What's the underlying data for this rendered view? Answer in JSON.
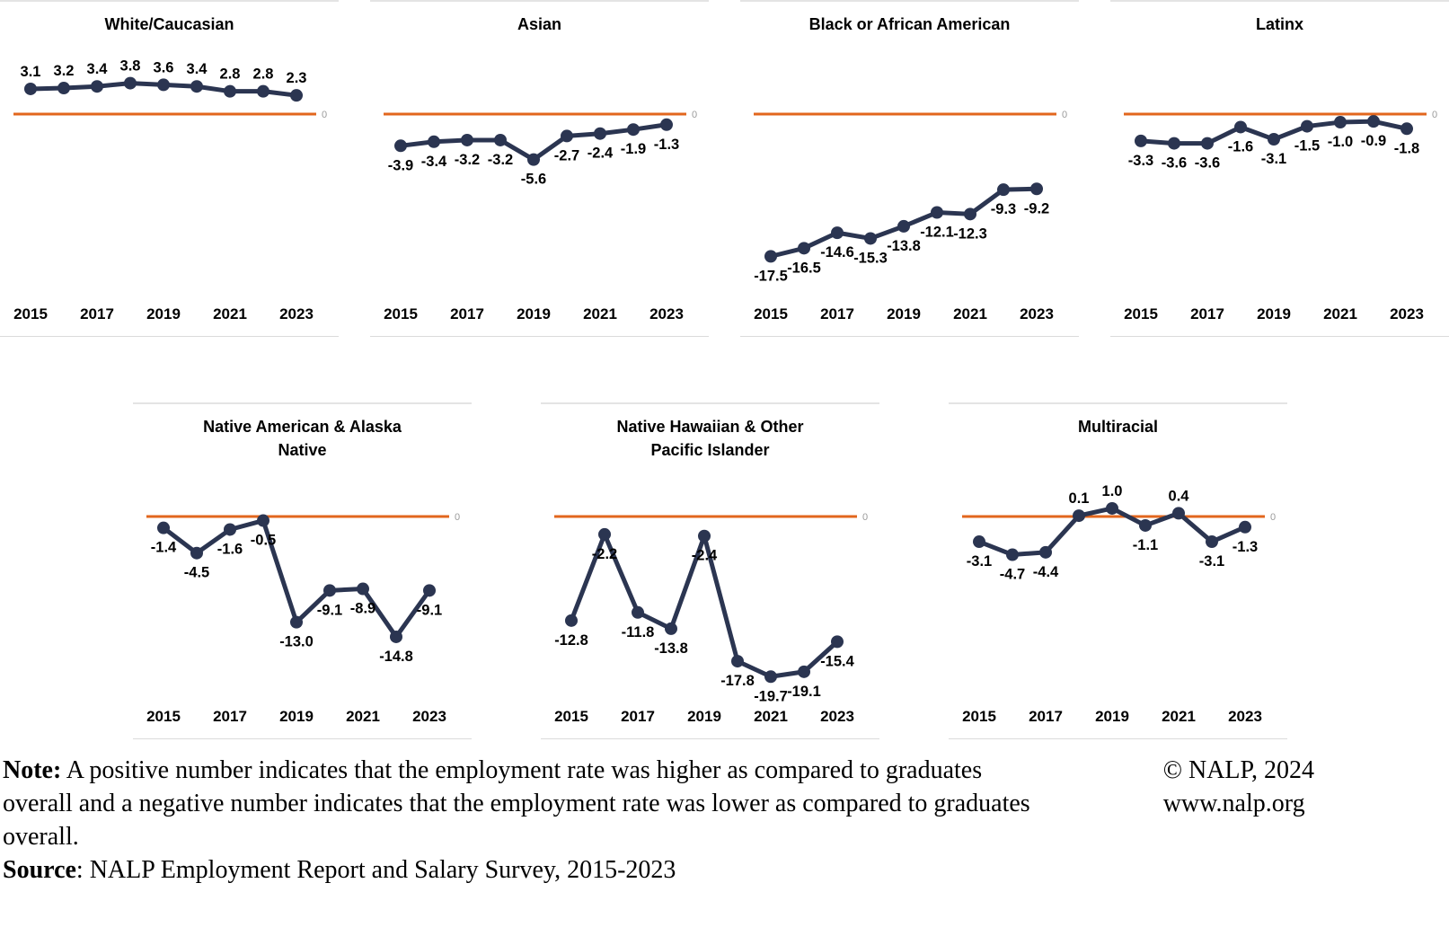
{
  "colors": {
    "series_line": "#2B3551",
    "zero_line": "#E2661D",
    "label_text": "#000000",
    "zero_tick_text": "#9B9B9B",
    "panel_border": "#E4E4E4"
  },
  "chart_data": [
    {
      "type": "line",
      "title": "White/Caucasian",
      "x": [
        2015,
        2016,
        2017,
        2018,
        2019,
        2020,
        2021,
        2022,
        2023
      ],
      "values": [
        3.1,
        3.2,
        3.4,
        3.8,
        3.6,
        3.4,
        2.8,
        2.8,
        2.3
      ],
      "labels": [
        "3.1",
        "3.2",
        "3.4",
        "3.8",
        "3.6",
        "3.4",
        "2.8",
        "2.8",
        "2.3"
      ],
      "xticks": [
        "2015",
        "2017",
        "2019",
        "2021",
        "2023"
      ],
      "ylim": [
        -22,
        6
      ],
      "zero_axis_label": "0",
      "grid": false,
      "legend": false
    },
    {
      "type": "line",
      "title": "Asian",
      "x": [
        2015,
        2016,
        2017,
        2018,
        2019,
        2020,
        2021,
        2022,
        2023
      ],
      "values": [
        -3.9,
        -3.4,
        -3.2,
        -3.2,
        -5.6,
        -2.7,
        -2.4,
        -1.9,
        -1.3
      ],
      "labels": [
        "-3.9",
        "-3.4",
        "-3.2",
        "-3.2",
        "-5.6",
        "-2.7",
        "-2.4",
        "-1.9",
        "-1.3"
      ],
      "xticks": [
        "2015",
        "2017",
        "2019",
        "2021",
        "2023"
      ],
      "ylim": [
        -22,
        6
      ],
      "zero_axis_label": "0",
      "grid": false,
      "legend": false
    },
    {
      "type": "line",
      "title": "Black or African American",
      "x": [
        2015,
        2016,
        2017,
        2018,
        2019,
        2020,
        2021,
        2022,
        2023
      ],
      "values": [
        -17.5,
        -16.5,
        -14.6,
        -15.3,
        -13.8,
        -12.1,
        -12.3,
        -9.3,
        -9.2
      ],
      "labels": [
        "-17.5",
        "-16.5",
        "-14.6",
        "-15.3",
        "-13.8",
        "-12.1",
        "-12.3",
        "-9.3",
        "-9.2"
      ],
      "xticks": [
        "2015",
        "2017",
        "2019",
        "2021",
        "2023"
      ],
      "ylim": [
        -22,
        6
      ],
      "zero_axis_label": "0",
      "grid": false,
      "legend": false
    },
    {
      "type": "line",
      "title": "Latinx",
      "x": [
        2015,
        2016,
        2017,
        2018,
        2019,
        2020,
        2021,
        2022,
        2023
      ],
      "values": [
        -3.3,
        -3.6,
        -3.6,
        -1.6,
        -3.1,
        -1.5,
        -1.0,
        -0.9,
        -1.8
      ],
      "labels": [
        "-3.3",
        "-3.6",
        "-3.6",
        "-1.6",
        "-3.1",
        "-1.5",
        "-1.0",
        "-0.9",
        "-1.8"
      ],
      "xticks": [
        "2015",
        "2017",
        "2019",
        "2021",
        "2023"
      ],
      "ylim": [
        -22,
        6
      ],
      "zero_axis_label": "0",
      "grid": false,
      "legend": false
    },
    {
      "type": "line",
      "title": "Native American & Alaska Native",
      "x": [
        2015,
        2016,
        2017,
        2018,
        2019,
        2020,
        2021,
        2022,
        2023
      ],
      "values": [
        -1.4,
        -4.5,
        -1.6,
        -0.5,
        -13.0,
        -9.1,
        -8.9,
        -14.8,
        -9.1
      ],
      "labels": [
        "-1.4",
        "-4.5",
        "-1.6",
        "-0.5",
        "-13.0",
        "-9.1",
        "-8.9",
        "-14.8",
        "-9.1"
      ],
      "xticks": [
        "2015",
        "2017",
        "2019",
        "2021",
        "2023"
      ],
      "ylim": [
        -22,
        6
      ],
      "zero_axis_label": "0",
      "grid": false,
      "legend": false
    },
    {
      "type": "line",
      "title": "Native Hawaiian & Other Pacific Islander",
      "x": [
        2015,
        2016,
        2017,
        2018,
        2019,
        2020,
        2021,
        2022,
        2023
      ],
      "values": [
        -12.8,
        -2.2,
        -11.8,
        -13.8,
        -2.4,
        -17.8,
        -19.7,
        -19.1,
        -15.4
      ],
      "labels": [
        "-12.8",
        "-2.2",
        "-11.8",
        "-13.8",
        "-2.4",
        "-17.8",
        "-19.7",
        "-19.1",
        "-15.4"
      ],
      "xticks": [
        "2015",
        "2017",
        "2019",
        "2021",
        "2023"
      ],
      "ylim": [
        -22,
        6
      ],
      "zero_axis_label": "0",
      "grid": false,
      "legend": false
    },
    {
      "type": "line",
      "title": "Multiracial",
      "x": [
        2015,
        2016,
        2017,
        2018,
        2019,
        2020,
        2021,
        2022,
        2023
      ],
      "values": [
        -3.1,
        -4.7,
        -4.4,
        0.1,
        1.0,
        -1.1,
        0.4,
        -3.1,
        -1.3
      ],
      "labels": [
        "-3.1",
        "-4.7",
        "-4.4",
        "0.1",
        "1.0",
        "-1.1",
        "0.4",
        "-3.1",
        "-1.3"
      ],
      "xticks": [
        "2015",
        "2017",
        "2019",
        "2021",
        "2023"
      ],
      "ylim": [
        -22,
        6
      ],
      "zero_axis_label": "0",
      "grid": false,
      "legend": false
    }
  ],
  "footer": {
    "note_label": "Note:",
    "note_text": " A positive number indicates that the employment rate was higher as compared to graduates overall and a negative number indicates that the employment rate was lower as compared to graduates overall.",
    "source_label": "Source",
    "source_text": ": NALP Employment Report and Salary Survey, 2015-2023",
    "copyright": "© NALP, 2024",
    "website": "www.nalp.org"
  }
}
